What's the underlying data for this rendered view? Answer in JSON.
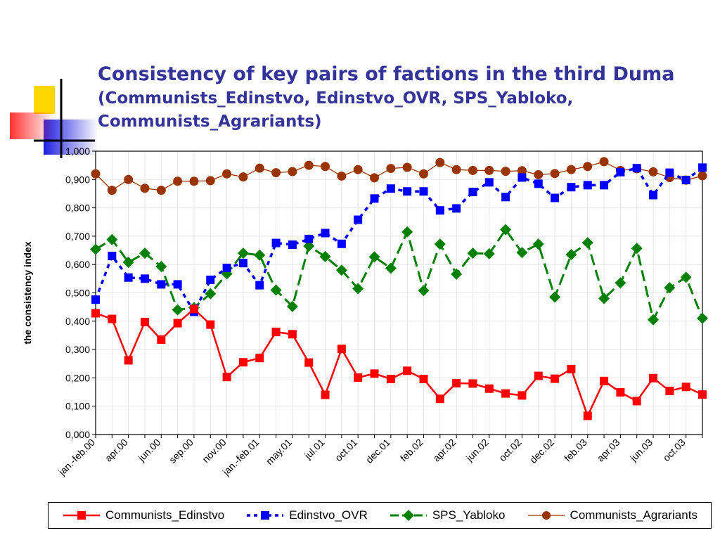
{
  "slide": {
    "title_line1": "Consistency of key pairs of factions in the third Duma",
    "title_line2": "(Communists_Edinstvo, Edinstvo_OVR, SPS_Yabloko, Communists_Agrariants)"
  },
  "colors": {
    "title": "#333399",
    "deco_yellow": "#FFD700",
    "deco_blue": "#1E1EE0",
    "deco_red": "#FF4040",
    "grid": "#e6e6e6"
  },
  "chart_data": {
    "type": "line",
    "title": "",
    "xlabel": "",
    "ylabel": "the consistency index",
    "ylim": [
      0,
      1
    ],
    "yticks": [
      "0,000",
      "0,100",
      "0,200",
      "0,300",
      "0,400",
      "0,500",
      "0,600",
      "0,700",
      "0,800",
      "0,900",
      "1,000"
    ],
    "grid": true,
    "legend_position": "bottom",
    "x_tick_labels": [
      {
        "index": 0,
        "label": "jan.-feb.00"
      },
      {
        "index": 2,
        "label": "apr.00"
      },
      {
        "index": 4,
        "label": "jun.00"
      },
      {
        "index": 6,
        "label": "sep.00"
      },
      {
        "index": 8,
        "label": "nov.00"
      },
      {
        "index": 10,
        "label": "jan.-feb.01"
      },
      {
        "index": 12,
        "label": "may.01"
      },
      {
        "index": 14,
        "label": "jul.01"
      },
      {
        "index": 16,
        "label": "oct.01"
      },
      {
        "index": 18,
        "label": "dec.01"
      },
      {
        "index": 20,
        "label": "feb.02"
      },
      {
        "index": 22,
        "label": "apr.02"
      },
      {
        "index": 24,
        "label": "jun.02"
      },
      {
        "index": 26,
        "label": "oct.02"
      },
      {
        "index": 28,
        "label": "dec.02"
      },
      {
        "index": 30,
        "label": "feb.03"
      },
      {
        "index": 32,
        "label": "apr.03"
      },
      {
        "index": 34,
        "label": "jun.03"
      },
      {
        "index": 36,
        "label": "oct.03"
      }
    ],
    "series": [
      {
        "name": "Communists_Edinstvo",
        "color": "#FF0000",
        "dash": "solid",
        "marker": "square",
        "values": [
          0.428,
          0.408,
          0.262,
          0.397,
          0.335,
          0.393,
          0.443,
          0.388,
          0.203,
          0.255,
          0.27,
          0.362,
          0.354,
          0.254,
          0.14,
          0.302,
          0.201,
          0.215,
          0.196,
          0.225,
          0.196,
          0.126,
          0.181,
          0.18,
          0.162,
          0.145,
          0.138,
          0.207,
          0.197,
          0.231,
          0.066,
          0.189,
          0.149,
          0.118,
          0.199,
          0.154,
          0.168,
          0.141
        ]
      },
      {
        "name": "Edinstvo_OVR",
        "color": "#0000FF",
        "dash": "dotted",
        "marker": "square",
        "values": [
          0.476,
          0.63,
          0.554,
          0.55,
          0.53,
          0.53,
          0.433,
          0.546,
          0.588,
          0.605,
          0.527,
          0.676,
          0.67,
          0.69,
          0.711,
          0.673,
          0.758,
          0.833,
          0.868,
          0.858,
          0.858,
          0.791,
          0.798,
          0.856,
          0.89,
          0.838,
          0.907,
          0.885,
          0.835,
          0.873,
          0.88,
          0.88,
          0.926,
          0.94,
          0.845,
          0.924,
          0.898,
          0.942
        ]
      },
      {
        "name": "SPS_Yabloko",
        "color": "#008000",
        "dash": "dashed",
        "marker": "diamond",
        "values": [
          0.654,
          0.688,
          0.608,
          0.64,
          0.593,
          0.44,
          0.448,
          0.497,
          0.567,
          0.64,
          0.633,
          0.51,
          0.452,
          0.665,
          0.628,
          0.58,
          0.515,
          0.627,
          0.587,
          0.715,
          0.508,
          0.672,
          0.566,
          0.64,
          0.638,
          0.723,
          0.642,
          0.672,
          0.485,
          0.635,
          0.677,
          0.48,
          0.535,
          0.657,
          0.405,
          0.518,
          0.555,
          0.41
        ]
      },
      {
        "name": "Communists_Agrariants",
        "color": "#993300",
        "dash": "thin",
        "marker": "circle",
        "values": [
          0.92,
          0.862,
          0.9,
          0.869,
          0.862,
          0.894,
          0.894,
          0.896,
          0.92,
          0.909,
          0.94,
          0.924,
          0.928,
          0.95,
          0.946,
          0.912,
          0.935,
          0.906,
          0.939,
          0.943,
          0.92,
          0.96,
          0.935,
          0.932,
          0.932,
          0.929,
          0.931,
          0.917,
          0.921,
          0.935,
          0.946,
          0.963,
          0.932,
          0.938,
          0.927,
          0.907,
          0.898,
          0.913
        ]
      }
    ]
  }
}
